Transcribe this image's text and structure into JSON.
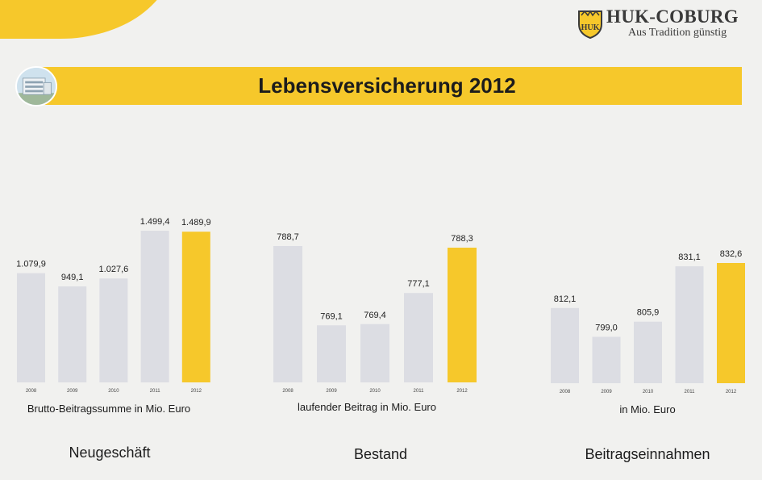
{
  "brand": {
    "name": "HUK-COBURG",
    "slogan": "Aus Tradition günstig",
    "shield_text": "HUK"
  },
  "page_title": "Lebensversicherung 2012",
  "colors": {
    "accent": "#f6c82b",
    "highlight_bar": "#f6c82b",
    "bar": "#dcdde3",
    "background": "#f1f1ef"
  },
  "chart_data": [
    {
      "type": "bar",
      "title": "Neugeschäft",
      "ylabel": "Brutto-Beitragssumme in Mio. Euro",
      "categories": [
        "2008",
        "2009",
        "2010",
        "2011",
        "2012"
      ],
      "values": [
        1079.9,
        949.1,
        1027.6,
        1499.4,
        1489.9
      ],
      "value_labels": [
        "1.079,9",
        "949,1",
        "1.027,6",
        "1.499,4",
        "1.489,9"
      ],
      "highlight": "2012",
      "axis_min": 0,
      "grid": false,
      "legend": "none"
    },
    {
      "type": "bar",
      "title": "Bestand",
      "ylabel": "laufender Beitrag in Mio. Euro",
      "categories": [
        "2008",
        "2009",
        "2010",
        "2011",
        "2012"
      ],
      "values": [
        788.7,
        769.1,
        769.4,
        777.1,
        788.3
      ],
      "value_labels": [
        "788,7",
        "769,1",
        "769,4",
        "777,1",
        "788,3"
      ],
      "highlight": "2012",
      "axis_min": 760,
      "grid": false,
      "legend": "none"
    },
    {
      "type": "bar",
      "title": "Beitragseinnahmen",
      "ylabel": "in Mio. Euro",
      "categories": [
        "2008",
        "2009",
        "2010",
        "2011",
        "2012"
      ],
      "values": [
        812.1,
        799.0,
        805.9,
        831.1,
        832.6
      ],
      "value_labels": [
        "812,1",
        "799,0",
        "805,9",
        "831,1",
        "832,6"
      ],
      "highlight": "2012",
      "axis_min": 790,
      "grid": false,
      "legend": "none"
    }
  ]
}
